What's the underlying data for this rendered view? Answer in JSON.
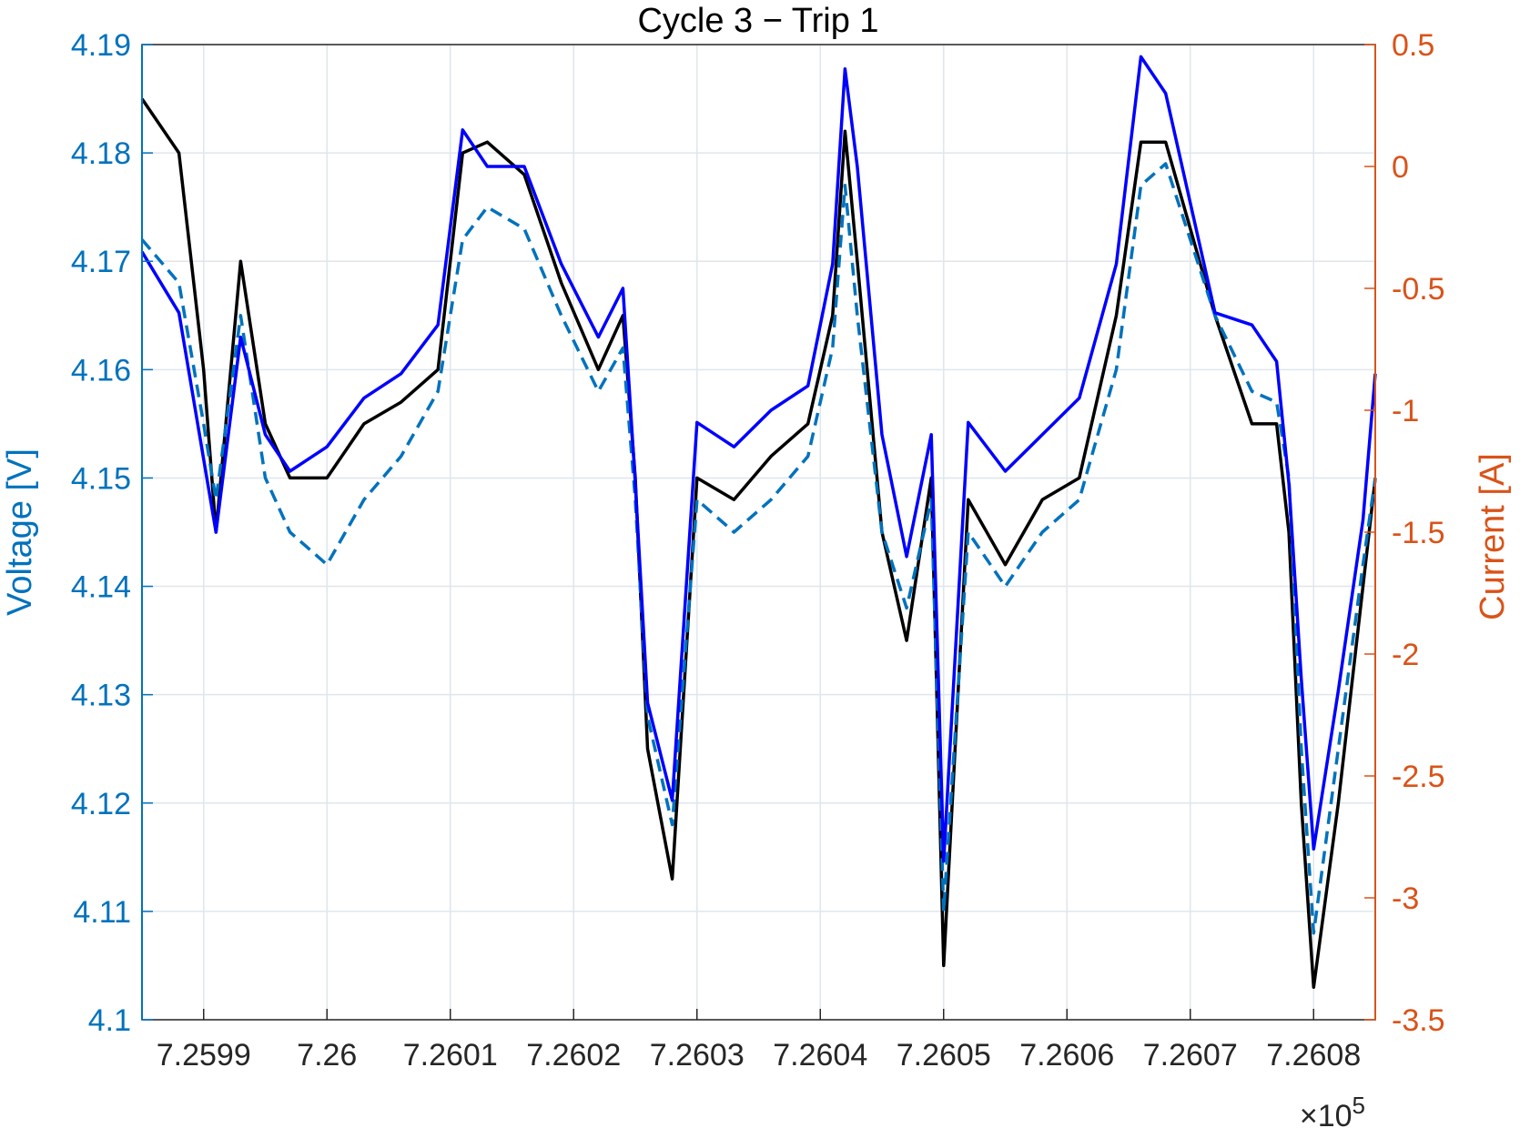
{
  "chart_data": {
    "type": "line",
    "title": "Cycle 3 − Trip 1",
    "xlabel": "",
    "x_exponent_label": "×10",
    "x_exponent_power": "5",
    "x_ticks": [
      7.2599,
      7.26,
      7.2601,
      7.2602,
      7.2603,
      7.2604,
      7.2605,
      7.2606,
      7.2607,
      7.2608
    ],
    "x_tick_labels": [
      "7.2599",
      "7.26",
      "7.2601",
      "7.2602",
      "7.2603",
      "7.2604",
      "7.2605",
      "7.2606",
      "7.2607",
      "7.2608"
    ],
    "xlim": [
      7.25985,
      7.26085
    ],
    "left_axis": {
      "label": "Voltage [V]",
      "color": "#0072BD",
      "ylim": [
        4.1,
        4.19
      ],
      "ticks": [
        4.1,
        4.11,
        4.12,
        4.13,
        4.14,
        4.15,
        4.16,
        4.17,
        4.18,
        4.19
      ],
      "tick_labels": [
        "4.1",
        "4.11",
        "4.12",
        "4.13",
        "4.14",
        "4.15",
        "4.16",
        "4.17",
        "4.18",
        "4.19"
      ]
    },
    "right_axis": {
      "label": "Current [A]",
      "color": "#D95319",
      "ylim": [
        -3.5,
        0.5
      ],
      "ticks": [
        -3.5,
        -3,
        -2.5,
        -2,
        -1.5,
        -1,
        -0.5,
        0,
        0.5
      ],
      "tick_labels": [
        "-3.5",
        "-3",
        "-2.5",
        "-2",
        "-1.5",
        "-1",
        "-0.5",
        "0",
        "0.5"
      ]
    },
    "grid": true,
    "series": [
      {
        "axis": "left",
        "color": "#000000",
        "style": "solid",
        "x": [
          7.25985,
          7.25988,
          7.2599,
          7.25991,
          7.25993,
          7.25995,
          7.25997,
          7.26,
          7.26003,
          7.26006,
          7.26009,
          7.26011,
          7.26013,
          7.26016,
          7.26019,
          7.26022,
          7.26024,
          7.26025,
          7.26026,
          7.26028,
          7.2603,
          7.26033,
          7.26036,
          7.26039,
          7.26041,
          7.26042,
          7.26043,
          7.26045,
          7.26047,
          7.26049,
          7.2605,
          7.26052,
          7.26055,
          7.26058,
          7.26061,
          7.26064,
          7.26066,
          7.26068,
          7.26072,
          7.26075,
          7.26077,
          7.26078,
          7.26079,
          7.2608,
          7.26082,
          7.26084,
          7.26085
        ],
        "y": [
          4.185,
          4.18,
          4.16,
          4.145,
          4.17,
          4.155,
          4.15,
          4.15,
          4.155,
          4.157,
          4.16,
          4.18,
          4.181,
          4.178,
          4.168,
          4.16,
          4.165,
          4.15,
          4.125,
          4.113,
          4.15,
          4.148,
          4.152,
          4.155,
          4.165,
          4.182,
          4.17,
          4.145,
          4.135,
          4.15,
          4.105,
          4.148,
          4.142,
          4.148,
          4.15,
          4.165,
          4.181,
          4.181,
          4.165,
          4.155,
          4.155,
          4.145,
          4.12,
          4.103,
          4.12,
          4.14,
          4.15
        ]
      },
      {
        "axis": "left",
        "color": "#0072BD",
        "style": "dashed",
        "x": [
          7.25985,
          7.25988,
          7.2599,
          7.25991,
          7.25993,
          7.25995,
          7.25997,
          7.26,
          7.26003,
          7.26006,
          7.26009,
          7.26011,
          7.26013,
          7.26016,
          7.26019,
          7.26022,
          7.26024,
          7.26025,
          7.26026,
          7.26028,
          7.2603,
          7.26033,
          7.26036,
          7.26039,
          7.26041,
          7.26042,
          7.26043,
          7.26045,
          7.26047,
          7.26049,
          7.2605,
          7.26052,
          7.26055,
          7.26058,
          7.26061,
          7.26064,
          7.26066,
          7.26068,
          7.26072,
          7.26075,
          7.26077,
          7.26078,
          7.26079,
          7.2608,
          7.26082,
          7.26084,
          7.26085
        ],
        "y": [
          4.172,
          4.168,
          4.155,
          4.148,
          4.165,
          4.15,
          4.145,
          4.142,
          4.148,
          4.152,
          4.158,
          4.172,
          4.175,
          4.173,
          4.165,
          4.158,
          4.162,
          4.148,
          4.128,
          4.118,
          4.148,
          4.145,
          4.148,
          4.152,
          4.162,
          4.177,
          4.165,
          4.145,
          4.138,
          4.148,
          4.11,
          4.145,
          4.14,
          4.145,
          4.148,
          4.16,
          4.177,
          4.179,
          4.165,
          4.158,
          4.157,
          4.15,
          4.125,
          4.108,
          4.125,
          4.142,
          4.15
        ]
      }
    ],
    "current_series": {
      "axis": "right",
      "color": "#0000FF",
      "style": "solid",
      "x": [
        7.25985,
        7.25988,
        7.2599,
        7.25991,
        7.25993,
        7.25995,
        7.25997,
        7.26,
        7.26003,
        7.26006,
        7.26009,
        7.26011,
        7.26013,
        7.26016,
        7.26019,
        7.26022,
        7.26024,
        7.26025,
        7.26026,
        7.26028,
        7.2603,
        7.26033,
        7.26036,
        7.26039,
        7.26041,
        7.26042,
        7.26043,
        7.26045,
        7.26047,
        7.26049,
        7.2605,
        7.26052,
        7.26055,
        7.26058,
        7.26061,
        7.26064,
        7.26066,
        7.26068,
        7.26072,
        7.26075,
        7.26077,
        7.26078,
        7.26079,
        7.2608,
        7.26082,
        7.26084,
        7.26085
      ],
      "y": [
        -0.35,
        -0.6,
        -1.2,
        -1.5,
        -0.7,
        -1.1,
        -1.25,
        -1.15,
        -0.95,
        -0.85,
        -0.65,
        0.15,
        0.0,
        0.0,
        -0.4,
        -0.7,
        -0.5,
        -1.3,
        -2.2,
        -2.6,
        -1.05,
        -1.15,
        -1.0,
        -0.9,
        -0.4,
        0.4,
        0.0,
        -1.1,
        -1.6,
        -1.1,
        -2.85,
        -1.05,
        -1.25,
        -1.1,
        -0.95,
        -0.4,
        0.45,
        0.3,
        -0.6,
        -0.65,
        -0.8,
        -1.3,
        -2.1,
        -2.8,
        -2.15,
        -1.45,
        -0.85
      ]
    }
  }
}
